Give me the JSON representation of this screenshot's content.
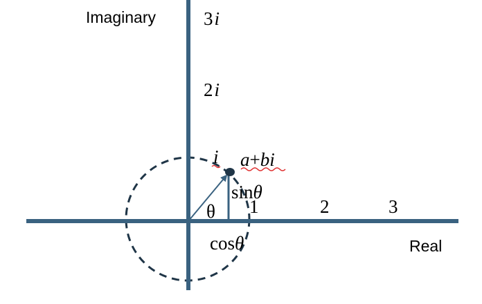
{
  "axes": {
    "imaginary_label": "Imaginary",
    "real_label": "Real"
  },
  "imag_ticks": [
    "3",
    "2",
    ""
  ],
  "imag_unit": "i",
  "real_ticks": [
    "1",
    "2",
    "3"
  ],
  "point_label": {
    "a": "a",
    "plus": "+",
    "b": "b",
    "i": "i"
  },
  "angle_label": "θ",
  "sin_label": {
    "func": "sin",
    "arg": "θ"
  },
  "cos_label": {
    "func": "cos",
    "arg": "θ"
  },
  "colors": {
    "axis": "#3a6280",
    "circle": "#1f3547",
    "point": "#1f3547",
    "squiggle": "#e03030"
  }
}
